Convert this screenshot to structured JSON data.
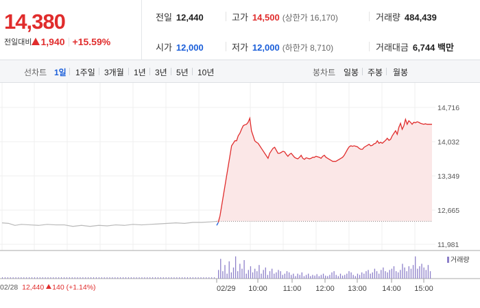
{
  "price": {
    "current": "14,380",
    "change_label": "전일대비",
    "change_amount": "1,940",
    "change_pct": "+15.59%"
  },
  "stats": {
    "prev_close": {
      "label": "전일",
      "value": "12,440"
    },
    "high": {
      "label": "고가",
      "value": "14,500",
      "sub": "(상한가 16,170)"
    },
    "volume": {
      "label": "거래량",
      "value": "484,439"
    },
    "open": {
      "label": "시가",
      "value": "12,000"
    },
    "low": {
      "label": "저가",
      "value": "12,000",
      "sub": "(하한가 8,710)"
    },
    "turnover": {
      "label": "거래대금",
      "value": "6,744 백만"
    }
  },
  "toolbar": {
    "line_label": "선차트",
    "periods": [
      "1일",
      "1주일",
      "3개월",
      "1년",
      "3년",
      "5년",
      "10년"
    ],
    "active_period": "1일",
    "candle_label": "봉차트",
    "candles": [
      "일봉",
      "주봉",
      "월봉"
    ]
  },
  "legend": {
    "volume": "거래량"
  },
  "bottom": {
    "date": "02/28",
    "close": "12,440",
    "change": "140",
    "pct": "(+1.14%)"
  },
  "colors": {
    "up": "#e02c2c",
    "down": "#1a5ed9",
    "volume": "#8c7fc9",
    "prev_line": "#b8b8b8"
  },
  "chart_data": {
    "type": "line",
    "x_unit": "time",
    "ylim": [
      11981,
      14716
    ],
    "y_ticks": [
      "14,716",
      "14,032",
      "13,349",
      "12,665",
      "11,981"
    ],
    "x_ticks": [
      "02/29",
      "10:00",
      "11:00",
      "12:00",
      "13:00",
      "14:00",
      "15:00"
    ],
    "prev_close": 12440,
    "series": [
      {
        "day": "02/28",
        "points": [
          [
            0,
            12410
          ],
          [
            0.03,
            12400
          ],
          [
            0.06,
            12360
          ],
          [
            0.09,
            12380
          ],
          [
            0.13,
            12370
          ],
          [
            0.17,
            12360
          ],
          [
            0.21,
            12380
          ],
          [
            0.25,
            12370
          ],
          [
            0.29,
            12370
          ],
          [
            0.33,
            12340
          ],
          [
            0.37,
            12360
          ],
          [
            0.41,
            12340
          ],
          [
            0.45,
            12360
          ],
          [
            0.49,
            12350
          ],
          [
            0.53,
            12370
          ],
          [
            0.57,
            12360
          ],
          [
            0.61,
            12380
          ],
          [
            0.65,
            12370
          ],
          [
            0.69,
            12380
          ],
          [
            0.73,
            12390
          ],
          [
            0.77,
            12400
          ],
          [
            0.81,
            12410
          ],
          [
            0.85,
            12400
          ],
          [
            0.89,
            12420
          ],
          [
            0.93,
            12420
          ],
          [
            0.97,
            12430
          ],
          [
            1.0,
            12440
          ]
        ]
      },
      {
        "day": "02/29",
        "points": [
          [
            "09:00",
            12360
          ],
          [
            "09:03",
            12420
          ],
          [
            "09:06",
            12550
          ],
          [
            "09:09",
            12750
          ],
          [
            "09:12",
            12950
          ],
          [
            "09:15",
            13150
          ],
          [
            "09:18",
            13350
          ],
          [
            "09:21",
            13550
          ],
          [
            "09:24",
            13750
          ],
          [
            "09:27",
            13950
          ],
          [
            "09:30",
            14000
          ],
          [
            "09:33",
            14050
          ],
          [
            "09:36",
            14050
          ],
          [
            "09:39",
            14150
          ],
          [
            "09:42",
            14200
          ],
          [
            "09:45",
            14280
          ],
          [
            "09:48",
            14350
          ],
          [
            "09:51",
            14370
          ],
          [
            "09:54",
            14380
          ],
          [
            "09:57",
            14420
          ],
          [
            "10:00",
            14500
          ],
          [
            "10:03",
            14250
          ],
          [
            "10:06",
            14150
          ],
          [
            "10:09",
            14050
          ],
          [
            "10:12",
            14020
          ],
          [
            "10:15",
            14000
          ],
          [
            "10:18",
            13950
          ],
          [
            "10:21",
            13900
          ],
          [
            "10:24",
            13850
          ],
          [
            "10:27",
            13800
          ],
          [
            "10:30",
            13750
          ],
          [
            "10:33",
            13700
          ],
          [
            "10:36",
            13800
          ],
          [
            "10:39",
            13850
          ],
          [
            "10:42",
            13900
          ],
          [
            "10:45",
            13920
          ],
          [
            "10:48",
            13860
          ],
          [
            "10:51",
            13800
          ],
          [
            "10:54",
            13800
          ],
          [
            "10:57",
            13820
          ],
          [
            "11:00",
            13840
          ],
          [
            "11:03",
            13830
          ],
          [
            "11:06",
            13780
          ],
          [
            "11:09",
            13740
          ],
          [
            "11:12",
            13780
          ],
          [
            "11:15",
            13800
          ],
          [
            "11:18",
            13760
          ],
          [
            "11:21",
            13720
          ],
          [
            "11:24",
            13700
          ],
          [
            "11:27",
            13690
          ],
          [
            "11:30",
            13720
          ],
          [
            "11:33",
            13760
          ],
          [
            "11:36",
            13700
          ],
          [
            "11:39",
            13680
          ],
          [
            "11:42",
            13710
          ],
          [
            "11:45",
            13700
          ],
          [
            "11:48",
            13690
          ],
          [
            "11:51",
            13700
          ],
          [
            "11:54",
            13720
          ],
          [
            "11:57",
            13720
          ],
          [
            "12:00",
            13740
          ],
          [
            "12:03",
            13730
          ],
          [
            "12:06",
            13720
          ],
          [
            "12:09",
            13700
          ],
          [
            "12:12",
            13740
          ],
          [
            "12:15",
            13760
          ],
          [
            "12:18",
            13720
          ],
          [
            "12:21",
            13700
          ],
          [
            "12:24",
            13680
          ],
          [
            "12:27",
            13660
          ],
          [
            "12:30",
            13640
          ],
          [
            "12:33",
            13640
          ],
          [
            "12:36",
            13640
          ],
          [
            "12:39",
            13660
          ],
          [
            "12:42",
            13680
          ],
          [
            "12:45",
            13700
          ],
          [
            "12:48",
            13720
          ],
          [
            "12:51",
            13760
          ],
          [
            "12:54",
            13820
          ],
          [
            "12:57",
            13880
          ],
          [
            "13:00",
            13930
          ],
          [
            "13:03",
            13950
          ],
          [
            "13:06",
            13940
          ],
          [
            "13:09",
            13950
          ],
          [
            "13:12",
            13940
          ],
          [
            "13:15",
            13930
          ],
          [
            "13:18",
            13900
          ],
          [
            "13:21",
            13880
          ],
          [
            "13:24",
            13880
          ],
          [
            "13:27",
            13920
          ],
          [
            "13:30",
            13940
          ],
          [
            "13:33",
            13960
          ],
          [
            "13:36",
            13980
          ],
          [
            "13:39",
            13950
          ],
          [
            "13:42",
            13960
          ],
          [
            "13:45",
            13990
          ],
          [
            "13:48",
            14000
          ],
          [
            "13:51",
            14050
          ],
          [
            "13:54",
            14000
          ],
          [
            "13:57",
            14020
          ],
          [
            "14:00",
            14000
          ],
          [
            "14:03",
            14030
          ],
          [
            "14:06",
            14060
          ],
          [
            "14:09",
            14100
          ],
          [
            "14:12",
            14060
          ],
          [
            "14:15",
            14080
          ],
          [
            "14:18",
            14150
          ],
          [
            "14:21",
            14200
          ],
          [
            "14:24",
            14250
          ],
          [
            "14:27",
            14180
          ],
          [
            "14:30",
            14320
          ],
          [
            "14:33",
            14400
          ],
          [
            "14:36",
            14280
          ],
          [
            "14:39",
            14350
          ],
          [
            "14:42",
            14480
          ],
          [
            "14:45",
            14380
          ],
          [
            "14:48",
            14450
          ],
          [
            "14:51",
            14420
          ],
          [
            "14:54",
            14380
          ],
          [
            "14:57",
            14420
          ],
          [
            "15:00",
            14410
          ],
          [
            "15:03",
            14430
          ],
          [
            "15:06",
            14420
          ],
          [
            "15:09",
            14400
          ],
          [
            "15:12",
            14390
          ],
          [
            "15:15",
            14380
          ],
          [
            "15:18",
            14390
          ],
          [
            "15:21",
            14380
          ],
          [
            "15:24",
            14380
          ],
          [
            "15:27",
            14380
          ],
          [
            "15:30",
            14380
          ]
        ]
      }
    ],
    "volume": {
      "unit": "relative",
      "values": [
        0.35,
        0.8,
        0.3,
        0.55,
        0.2,
        0.7,
        0.25,
        0.45,
        0.9,
        0.3,
        0.6,
        0.4,
        0.75,
        0.2,
        0.35,
        0.5,
        0.25,
        0.4,
        0.3,
        0.55,
        0.2,
        0.35,
        0.45,
        0.15,
        0.3,
        0.4,
        0.2,
        0.25,
        0.35,
        0.3,
        0.15,
        0.2,
        0.3,
        0.25,
        0.15,
        0.2,
        0.1,
        0.2,
        0.15,
        0.25,
        0.1,
        0.15,
        0.2,
        0.1,
        0.15,
        0.12,
        0.18,
        0.1,
        0.15,
        0.2,
        0.12,
        0.1,
        0.15,
        0.25,
        0.3,
        0.15,
        0.1,
        0.2,
        0.12,
        0.15,
        0.2,
        0.3,
        0.25,
        0.15,
        0.1,
        0.2,
        0.15,
        0.25,
        0.2,
        0.3,
        0.35,
        0.2,
        0.25,
        0.4,
        0.3,
        0.2,
        0.35,
        0.45,
        0.3,
        0.25,
        0.35,
        0.4,
        0.5,
        0.3,
        0.25,
        0.35,
        0.6,
        0.45,
        0.3,
        0.5,
        0.4,
        0.55,
        0.9,
        0.4,
        0.5,
        0.6,
        0.45,
        0.35,
        0.55,
        0.3
      ]
    }
  }
}
